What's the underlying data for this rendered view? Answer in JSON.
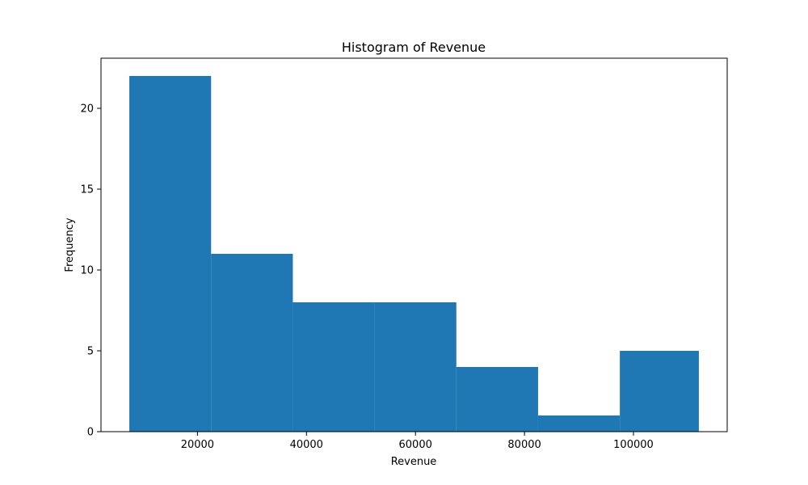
{
  "colors": {
    "bar": "#1f77b4"
  },
  "chart_data": {
    "type": "bar",
    "subtype": "histogram",
    "title": "Histogram of Revenue",
    "xlabel": "Revenue",
    "ylabel": "Frequency",
    "bin_edges": [
      7500,
      22500,
      37500,
      52500,
      67500,
      82500,
      97500,
      112000
    ],
    "values": [
      22,
      11,
      8,
      8,
      4,
      1,
      5
    ],
    "xlim": [
      2300,
      117200
    ],
    "ylim": [
      0,
      23.1
    ],
    "xticks": [
      20000,
      40000,
      60000,
      80000,
      100000
    ],
    "xtick_labels": [
      "20000",
      "40000",
      "60000",
      "80000",
      "100000"
    ],
    "yticks": [
      0,
      5,
      10,
      15,
      20
    ],
    "ytick_labels": [
      "0",
      "5",
      "10",
      "15",
      "20"
    ],
    "grid": false,
    "legend": "none"
  }
}
